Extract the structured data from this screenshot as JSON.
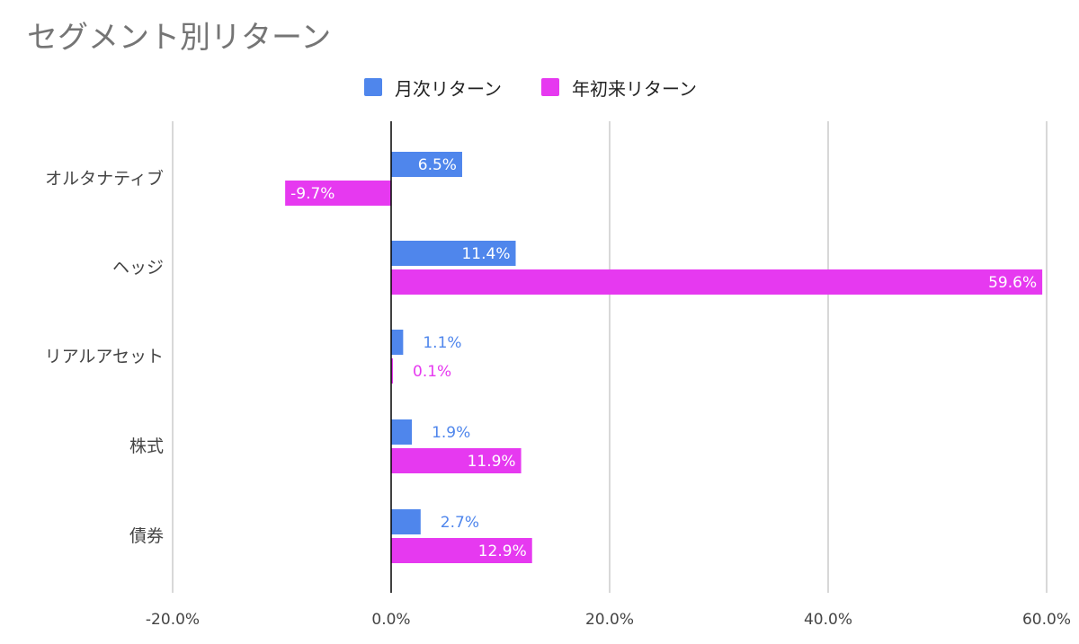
{
  "colors": {
    "monthly": "#4f86ec",
    "ytd": "#e639f0",
    "grid": "#cccccc",
    "axis": "#000000",
    "text": "#444444"
  },
  "chart_data": {
    "type": "bar",
    "orientation": "horizontal",
    "title": "セグメント別リターン",
    "categories": [
      "オルタナティブ",
      "ヘッジ",
      "リアルアセット",
      "株式",
      "債券"
    ],
    "series": [
      {
        "name": "月次リターン",
        "values": [
          6.5,
          11.4,
          1.1,
          1.9,
          2.7
        ],
        "labels": [
          "6.5%",
          "11.4%",
          "1.1%",
          "1.9%",
          "2.7%"
        ]
      },
      {
        "name": "年初来リターン",
        "values": [
          -9.7,
          59.6,
          0.1,
          11.9,
          12.9
        ],
        "labels": [
          "-9.7%",
          "59.6%",
          "0.1%",
          "11.9%",
          "12.9%"
        ]
      }
    ],
    "xlim": [
      -20,
      60
    ],
    "xticks": [
      -20,
      0,
      20,
      40,
      60
    ],
    "xtick_labels": [
      "-20.0%",
      "0.0%",
      "20.0%",
      "40.0%",
      "60.0%"
    ],
    "legend_position": "top",
    "grid": true
  }
}
